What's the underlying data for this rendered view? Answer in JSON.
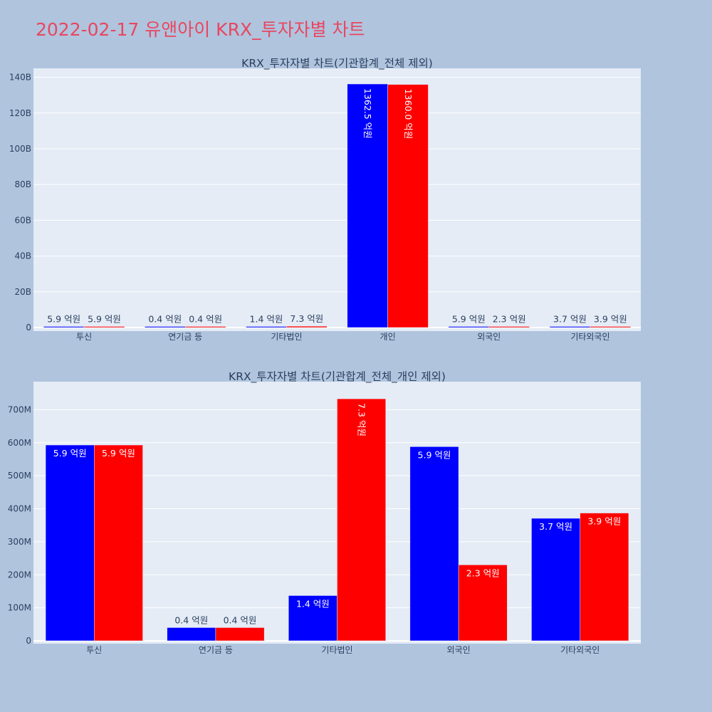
{
  "page": {
    "title": "2022-02-17 유앤아이 KRX_투자자별 차트"
  },
  "colors": {
    "background": "#b0c4de",
    "plot_bg": "#e5ecf6",
    "series_a": "#0000ff",
    "series_b": "#ff0000",
    "title": "#e8475f"
  },
  "chart_data": [
    {
      "type": "bar",
      "title": "KRX_투자자별 차트(기관합계_전체 제외)",
      "categories": [
        "투신",
        "연기금 등",
        "기타법인",
        "개인",
        "외국인",
        "기타외국인"
      ],
      "ylim": [
        0,
        145000000000
      ],
      "y_ticks": [
        0,
        20000000000,
        40000000000,
        60000000000,
        80000000000,
        100000000000,
        120000000000,
        140000000000
      ],
      "y_tick_labels": [
        "0",
        "20B",
        "40B",
        "60B",
        "80B",
        "100B",
        "120B",
        "140B"
      ],
      "grid": true,
      "series": [
        {
          "color": "#0000ff",
          "values": [
            590000000,
            40000000,
            140000000,
            136250000000,
            590000000,
            370000000
          ],
          "labels": [
            "5.9 억원",
            "0.4 억원",
            "1.4 억원",
            "1362.5 억원",
            "5.9 억원",
            "3.7 억원"
          ]
        },
        {
          "color": "#ff0000",
          "values": [
            590000000,
            40000000,
            730000000,
            136000000000,
            230000000,
            390000000
          ],
          "labels": [
            "5.9 억원",
            "0.4 억원",
            "7.3 억원",
            "1360.0 억원",
            "2.3 억원",
            "3.9 억원"
          ]
        }
      ]
    },
    {
      "type": "bar",
      "title": "KRX_투자자별 차트(기관합계_전체_개인 제외)",
      "categories": [
        "투신",
        "연기금 등",
        "기타법인",
        "외국인",
        "기타외국인"
      ],
      "ylim": [
        0,
        785000000
      ],
      "y_ticks": [
        0,
        100000000,
        200000000,
        300000000,
        400000000,
        500000000,
        600000000,
        700000000
      ],
      "y_tick_labels": [
        "0",
        "100M",
        "200M",
        "300M",
        "400M",
        "500M",
        "600M",
        "700M"
      ],
      "grid": true,
      "series": [
        {
          "color": "#0000ff",
          "values": [
            593000000,
            40000000,
            137000000,
            588000000,
            371000000
          ],
          "labels": [
            "5.9 억원",
            "0.4 억원",
            "1.4 억원",
            "5.9 억원",
            "3.7 억원"
          ]
        },
        {
          "color": "#ff0000",
          "values": [
            593000000,
            40000000,
            733000000,
            230000000,
            387000000
          ],
          "labels": [
            "5.9 억원",
            "0.4 억원",
            "7.3 억원",
            "2.3 억원",
            "3.9 억원"
          ]
        }
      ]
    }
  ]
}
